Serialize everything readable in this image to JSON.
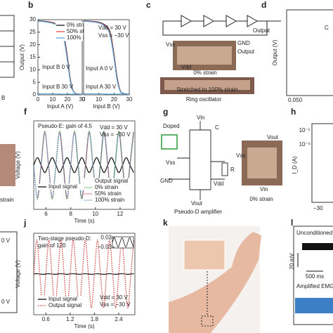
{
  "chart_data": [
    {
      "type": "line",
      "panel": "b",
      "x_label": "Input A (V)",
      "y_label": "Output (V)",
      "xlim": [
        0,
        30
      ],
      "xticks": [
        0,
        10,
        20,
        30
      ],
      "ylim": [
        0,
        30
      ],
      "yticks": [
        0,
        5,
        10,
        15,
        20,
        25,
        30
      ],
      "annotations": [
        "Input B 0 V",
        "Input B 30 V"
      ],
      "x": [
        0,
        4,
        8,
        12,
        16,
        18,
        20,
        22,
        24,
        26,
        30
      ],
      "series": [
        {
          "name": "0% strain",
          "color": "#111111",
          "style": "solid",
          "values": [
            29.6,
            29.4,
            29.1,
            28.4,
            26.2,
            22.5,
            15.0,
            6.0,
            1.5,
            0.5,
            0.2
          ]
        },
        {
          "name": "50% strain",
          "color": "#e05050",
          "style": "solid",
          "values": [
            29.5,
            29.3,
            29.0,
            28.2,
            25.8,
            21.8,
            14.2,
            5.5,
            1.4,
            0.5,
            0.2
          ]
        },
        {
          "name": "100% strain",
          "color": "#5aa6d8",
          "style": "solid",
          "values": [
            29.4,
            29.2,
            28.8,
            28.0,
            25.4,
            21.0,
            13.5,
            5.0,
            1.3,
            0.4,
            0.2
          ]
        },
        {
          "color": "#5aa6d8",
          "style": "solid",
          "values": [
            0.4,
            0.4,
            0.4,
            0.4,
            0.3,
            0.3,
            0.3,
            0.3,
            0.3,
            0.3,
            0.3
          ]
        }
      ]
    },
    {
      "type": "line",
      "x_label": "Input B (V)",
      "ylim": [
        0,
        30
      ],
      "xlim": [
        0,
        30
      ],
      "xticks": [
        0,
        10,
        20,
        30
      ],
      "annotations": [
        "Vdd = 30 V",
        "Vss = −30 V",
        "Input A 0 V",
        "Input A 30 V"
      ],
      "x": [
        0,
        4,
        8,
        12,
        16,
        18,
        20,
        22,
        24,
        26,
        30
      ],
      "series": [
        {
          "color": "#111111",
          "style": "solid",
          "values": [
            29.6,
            29.4,
            29.2,
            28.6,
            26.8,
            23.5,
            16.0,
            7.0,
            1.8,
            0.6,
            0.2
          ]
        },
        {
          "color": "#e05050",
          "style": "solid",
          "values": [
            29.5,
            29.3,
            29.1,
            28.4,
            26.4,
            22.8,
            15.2,
            6.4,
            1.6,
            0.5,
            0.2
          ]
        },
        {
          "color": "#5aa6d8",
          "style": "solid",
          "values": [
            29.4,
            29.2,
            28.9,
            28.2,
            26.0,
            22.0,
            14.5,
            5.8,
            1.5,
            0.5,
            0.2
          ]
        },
        {
          "color": "#5aa6d8",
          "style": "solid",
          "values": [
            0.4,
            0.4,
            0.4,
            0.4,
            0.3,
            0.3,
            0.3,
            0.3,
            0.3,
            0.3,
            0.3
          ]
        }
      ]
    },
    {
      "type": "line",
      "panel": "f",
      "x_label": "Time (s)",
      "y_label": "Voltage (V)",
      "xlim": [
        5,
        13.2
      ],
      "xticks": [
        6,
        8,
        10,
        12
      ],
      "ylim": [
        -1.3,
        1.3
      ],
      "annotations": [
        "Pseudo-E: gain of 4.5",
        "Vdd = 30 V",
        "Vss = −30 V"
      ],
      "legend_title": "Output signal",
      "x": [
        5,
        5.3,
        5.6,
        5.9,
        6.2,
        6.5,
        6.8,
        7.1,
        7.4,
        7.7,
        8,
        8.3,
        8.6,
        8.9,
        9.2,
        9.5,
        9.8,
        10.1,
        10.4,
        10.7,
        11,
        11.3,
        11.6,
        11.9,
        12.2,
        12.5,
        12.8,
        13.1
      ],
      "series": [
        {
          "name": "Input signal",
          "color": "#111111",
          "style": "solid",
          "values": [
            0,
            0.22,
            0,
            -0.22,
            0,
            0.22,
            0,
            -0.22,
            0,
            0.22,
            0,
            -0.22,
            0,
            0.22,
            0,
            -0.22,
            0,
            0.22,
            0,
            -0.22,
            0,
            0.22,
            0,
            -0.22,
            0,
            0.22,
            0,
            -0.22
          ]
        },
        {
          "name": "0% strain",
          "color": "#3a9a3a",
          "style": "dotted",
          "values": [
            0,
            -1,
            0,
            1,
            0,
            -1,
            0,
            1,
            0,
            -1,
            0,
            1,
            0,
            -1,
            0,
            1,
            0,
            -1,
            0,
            1,
            0,
            -1,
            0,
            1,
            0,
            -1,
            0,
            1
          ]
        },
        {
          "name": "50% strain",
          "color": "#d04040",
          "style": "dotted",
          "values": [
            0,
            -0.97,
            0,
            0.97,
            0,
            -0.97,
            0,
            0.97,
            0,
            -0.97,
            0,
            0.97,
            0,
            -0.97,
            0,
            0.97,
            0,
            -0.97,
            0,
            0.97,
            0,
            -0.97,
            0,
            0.97,
            0,
            -0.97,
            0,
            0.97
          ]
        },
        {
          "name": "100% strain",
          "color": "#4a8fd0",
          "style": "dotted",
          "values": [
            0,
            -0.95,
            0,
            0.95,
            0,
            -0.95,
            0,
            0.95,
            0,
            -0.95,
            0,
            0.95,
            0,
            -0.95,
            0,
            0.95,
            0,
            -0.95,
            0,
            0.95,
            0,
            -0.95,
            0,
            0.95,
            0,
            -0.95,
            0,
            0.95
          ]
        }
      ]
    },
    {
      "type": "line",
      "panel": "j",
      "x_label": "Time (s)",
      "y_label": "Voltage (V)",
      "xlim": [
        0.3,
        2.8
      ],
      "xticks": [
        0.6,
        1.2,
        1.8,
        2.4
      ],
      "ylim": [
        -4.2,
        4.2
      ],
      "annotations": [
        "Two-stage pseudo-D:",
        "gain of 120",
        "Vdd = 30 V",
        "Vss = −30 V"
      ],
      "x": [
        0.3,
        0.375,
        0.45,
        0.525,
        0.6,
        0.675,
        0.75,
        0.825,
        0.9,
        0.975,
        1.05,
        1.125,
        1.2,
        1.275,
        1.35,
        1.425,
        1.5,
        1.575,
        1.65,
        1.725,
        1.8,
        1.875,
        1.95,
        2.025,
        2.1,
        2.175,
        2.25,
        2.325,
        2.4,
        2.475,
        2.55,
        2.625,
        2.7,
        2.775
      ],
      "series": [
        {
          "name": "Input signal",
          "color": "#111111",
          "style": "solid",
          "values": [
            0,
            0.03,
            0,
            -0.03,
            0,
            0.03,
            0,
            -0.03,
            0,
            0.03,
            0,
            -0.03,
            0,
            0.03,
            0,
            -0.03,
            0,
            0.03,
            0,
            -0.03,
            0,
            0.03,
            0,
            -0.03,
            0,
            0.03,
            0,
            -0.03,
            0,
            0.03,
            0,
            -0.03,
            0,
            0.03
          ]
        },
        {
          "name": "Output signal",
          "color": "#d04040",
          "style": "dotted",
          "values": [
            0,
            3.5,
            0,
            -3.5,
            0,
            3.5,
            0,
            -3.5,
            0,
            3.5,
            0,
            -3.5,
            0,
            3.5,
            0,
            -3.5,
            0,
            3.5,
            0,
            -3.5,
            0,
            3.5,
            0,
            -3.5,
            0,
            3.5,
            0,
            -3.5,
            0,
            3.5,
            0,
            -3.5,
            0,
            3.5
          ]
        }
      ]
    },
    {
      "type": "line",
      "xlim": [
        0,
        11
      ],
      "ylim": [
        -0.036,
        0.036
      ],
      "yticks": [
        0.03,
        {
          "value": -0.03,
          "label": "−0.03"
        }
      ],
      "x": [
        0,
        1,
        2,
        3,
        4,
        5,
        6,
        7,
        8,
        9,
        10,
        11
      ],
      "series": [
        {
          "color": "#111111",
          "style": "solid",
          "values": [
            0,
            0.03,
            0,
            -0.03,
            0,
            0.03,
            0,
            -0.03,
            0,
            0.03,
            0,
            -0.03
          ]
        }
      ]
    }
  ],
  "panels": {
    "c": {
      "label": "c",
      "texts": [
        "Output",
        "Vss",
        "GND",
        "Output",
        "Vdd",
        "0% strain",
        "Stretched to 100% strain",
        "Ring oscillator"
      ]
    },
    "d": {
      "label": "d",
      "texts": [
        "Output (V)",
        "0.050",
        "C"
      ]
    },
    "g": {
      "label": "g",
      "texts": [
        "Doped",
        "Vin",
        "C",
        "Vss",
        "R",
        "GND",
        "Vout",
        "Vdd",
        "Vout",
        "Vss",
        "Vin",
        "0% strain",
        "Pseudo-D amplifier"
      ]
    },
    "h": {
      "label": "h",
      "texts": [
        "10⁻⁵",
        "10⁻⁶",
        "I_D (A)",
        "−30"
      ]
    },
    "k": {
      "label": "k"
    },
    "l": {
      "label": "l",
      "texts": [
        "Unconditioned",
        "20 mV",
        "500 ms",
        "Amplified EMG"
      ]
    },
    "edge": {
      "texts": [
        "B",
        "strain",
        "0 V",
        "0 V"
      ]
    }
  }
}
